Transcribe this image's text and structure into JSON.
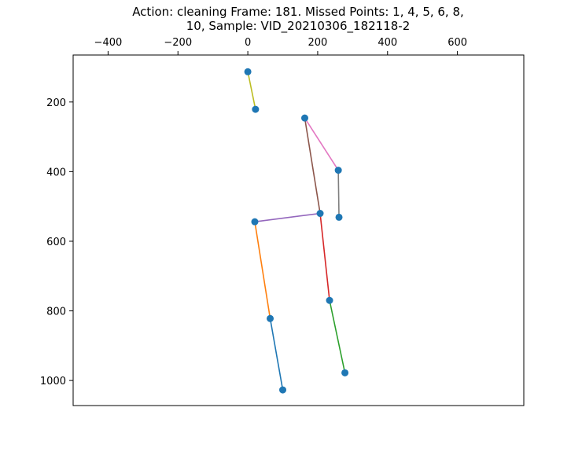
{
  "chart_data": {
    "type": "scatter",
    "title_lines": [
      "Action: cleaning   Frame: 181. Missed Points: 1, 4, 5, 6, 8,",
      "10,  Sample: VID_20210306_182118-2"
    ],
    "xlabel": "",
    "ylabel": "",
    "x_axis_position": "top",
    "y_inverted": true,
    "xlim": [
      -500,
      790
    ],
    "ylim": [
      1072,
      65
    ],
    "x_ticks": [
      -400,
      -200,
      0,
      200,
      400,
      600
    ],
    "x_tick_labels": [
      "−400",
      "−200",
      "0",
      "200",
      "400",
      "600"
    ],
    "y_ticks": [
      200,
      400,
      600,
      800,
      1000
    ],
    "y_tick_labels": [
      "200",
      "400",
      "600",
      "800",
      "1000"
    ],
    "grid": false,
    "legend": "none",
    "point_color": "#1f77b4",
    "points": [
      {
        "x": 0,
        "y": 113
      },
      {
        "x": 22,
        "y": 221
      },
      {
        "x": 163,
        "y": 246
      },
      {
        "x": 259,
        "y": 396
      },
      {
        "x": 261,
        "y": 531
      },
      {
        "x": 207,
        "y": 520
      },
      {
        "x": 20,
        "y": 544
      },
      {
        "x": 234,
        "y": 770
      },
      {
        "x": 64,
        "y": 822
      },
      {
        "x": 278,
        "y": 978
      },
      {
        "x": 100,
        "y": 1027
      }
    ],
    "segments": [
      {
        "from": 8,
        "to": 10,
        "color": "#1f77b4"
      },
      {
        "from": 6,
        "to": 8,
        "color": "#ff7f0e"
      },
      {
        "from": 7,
        "to": 9,
        "color": "#2ca02c"
      },
      {
        "from": 5,
        "to": 7,
        "color": "#d62728"
      },
      {
        "from": 5,
        "to": 6,
        "color": "#9467bd"
      },
      {
        "from": 2,
        "to": 5,
        "color": "#8c564b"
      },
      {
        "from": 2,
        "to": 3,
        "color": "#e377c2"
      },
      {
        "from": 3,
        "to": 4,
        "color": "#7f7f7f"
      },
      {
        "from": 0,
        "to": 1,
        "color": "#bcbd22"
      }
    ]
  }
}
